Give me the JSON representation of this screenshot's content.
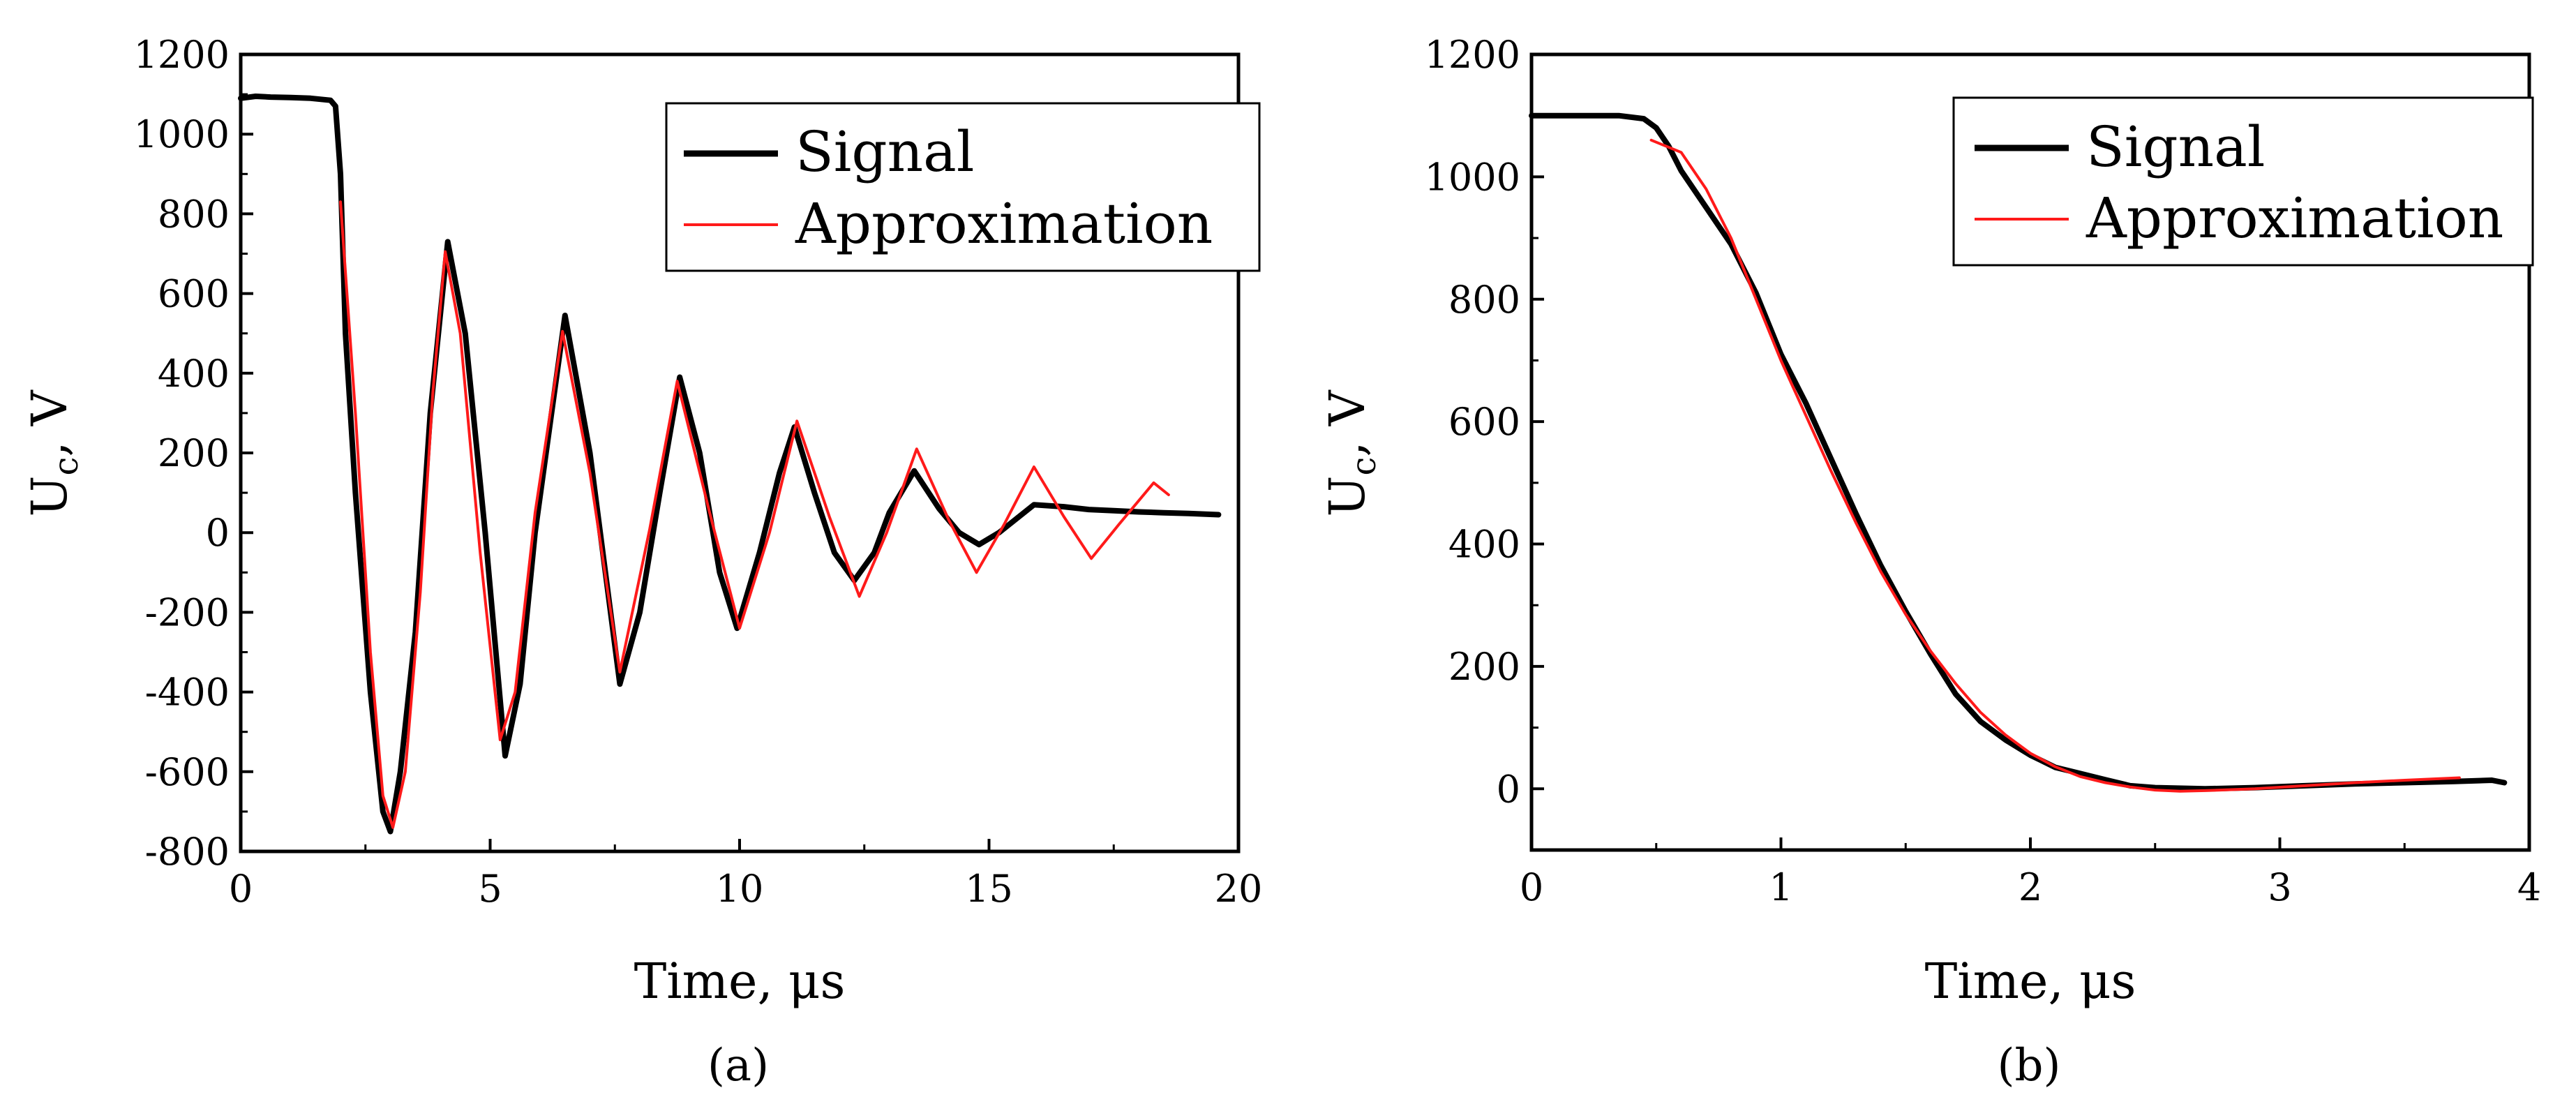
{
  "chart_data": [
    {
      "id": "a",
      "type": "line",
      "caption": "(a)",
      "xlabel": "Time, μs",
      "ylabel": "U",
      "ylabel_sub": "c",
      "ylabel_suffix": ", V",
      "xlim": [
        0,
        20
      ],
      "ylim": [
        -800,
        1200
      ],
      "xticks": [
        0,
        5,
        10,
        15,
        20
      ],
      "yticks": [
        -800,
        -600,
        -400,
        -200,
        0,
        200,
        400,
        600,
        800,
        1000,
        1200
      ],
      "grid": false,
      "legend_position": "top-right",
      "legend": [
        "Signal",
        "Approximation"
      ],
      "series": [
        {
          "name": "Signal",
          "color": "#000000",
          "x": [
            0,
            0.3,
            0.6,
            1.0,
            1.4,
            1.8,
            1.9,
            2.0,
            2.1,
            2.3,
            2.6,
            2.85,
            3.0,
            3.2,
            3.5,
            3.8,
            4.15,
            4.5,
            4.9,
            5.3,
            5.6,
            5.9,
            6.5,
            7.0,
            7.6,
            8.0,
            8.4,
            8.8,
            9.2,
            9.6,
            9.95,
            10.4,
            10.8,
            11.1,
            11.5,
            11.9,
            12.3,
            12.7,
            13.0,
            13.5,
            14.0,
            14.4,
            14.8,
            15.2,
            15.9,
            16.5,
            17.0,
            17.5,
            18.0,
            18.5,
            19.0,
            19.6
          ],
          "y": [
            1090,
            1095,
            1093,
            1092,
            1090,
            1085,
            1070,
            900,
            500,
            100,
            -400,
            -700,
            -750,
            -600,
            -250,
            300,
            730,
            500,
            0,
            -560,
            -380,
            0,
            545,
            200,
            -380,
            -200,
            100,
            390,
            200,
            -100,
            -240,
            -50,
            150,
            265,
            100,
            -50,
            -120,
            -50,
            50,
            155,
            60,
            0,
            -30,
            0,
            70,
            65,
            58,
            55,
            52,
            50,
            48,
            45
          ]
        },
        {
          "name": "Approximation",
          "color": "#ff1a1a",
          "x": [
            2.0,
            2.3,
            2.6,
            2.85,
            3.05,
            3.3,
            3.6,
            3.85,
            4.1,
            4.4,
            4.8,
            5.2,
            5.5,
            5.9,
            6.45,
            7.0,
            7.6,
            8.2,
            8.75,
            9.4,
            10.0,
            10.6,
            11.15,
            11.8,
            12.4,
            12.95,
            13.55,
            14.2,
            14.75,
            15.3,
            15.9,
            16.5,
            17.05,
            17.6,
            18.3,
            18.6
          ],
          "y": [
            830,
            300,
            -300,
            -660,
            -740,
            -600,
            -150,
            350,
            705,
            500,
            -50,
            -520,
            -400,
            50,
            505,
            150,
            -350,
            10,
            380,
            50,
            -240,
            0,
            280,
            40,
            -160,
            0,
            210,
            30,
            -100,
            20,
            165,
            40,
            -65,
            20,
            125,
            95
          ]
        }
      ]
    },
    {
      "id": "b",
      "type": "line",
      "caption": "(b)",
      "xlabel": "Time, μs",
      "ylabel": "U",
      "ylabel_sub": "c",
      "ylabel_suffix": ", V",
      "xlim": [
        0,
        4
      ],
      "ylim": [
        -100,
        1200
      ],
      "xticks": [
        0,
        1,
        2,
        3,
        4
      ],
      "yticks": [
        0,
        200,
        400,
        600,
        800,
        1000,
        1200
      ],
      "grid": false,
      "legend_position": "top-right",
      "legend": [
        "Signal",
        "Approximation"
      ],
      "series": [
        {
          "name": "Signal",
          "color": "#000000",
          "x": [
            0,
            0.2,
            0.35,
            0.45,
            0.5,
            0.55,
            0.6,
            0.7,
            0.8,
            0.9,
            1.0,
            1.1,
            1.2,
            1.3,
            1.4,
            1.5,
            1.6,
            1.7,
            1.8,
            1.9,
            2.0,
            2.1,
            2.2,
            2.3,
            2.4,
            2.5,
            2.7,
            2.9,
            3.1,
            3.3,
            3.5,
            3.7,
            3.85,
            3.9
          ],
          "y": [
            1100,
            1100,
            1100,
            1095,
            1080,
            1050,
            1010,
            950,
            890,
            810,
            710,
            630,
            540,
            450,
            365,
            290,
            220,
            155,
            110,
            80,
            55,
            35,
            25,
            15,
            5,
            2,
            0,
            2,
            5,
            8,
            10,
            12,
            14,
            10
          ]
        },
        {
          "name": "Approximation",
          "color": "#ff1a1a",
          "x": [
            0.48,
            0.6,
            0.7,
            0.8,
            0.9,
            1.0,
            1.1,
            1.2,
            1.3,
            1.4,
            1.5,
            1.6,
            1.7,
            1.8,
            1.9,
            2.0,
            2.1,
            2.2,
            2.3,
            2.4,
            2.5,
            2.6,
            2.7,
            2.9,
            3.1,
            3.3,
            3.5,
            3.72
          ],
          "y": [
            1060,
            1040,
            980,
            900,
            800,
            700,
            610,
            520,
            435,
            355,
            285,
            225,
            172,
            125,
            88,
            58,
            36,
            20,
            10,
            3,
            -2,
            -4,
            -3,
            0,
            5,
            10,
            14,
            18
          ]
        }
      ]
    }
  ]
}
